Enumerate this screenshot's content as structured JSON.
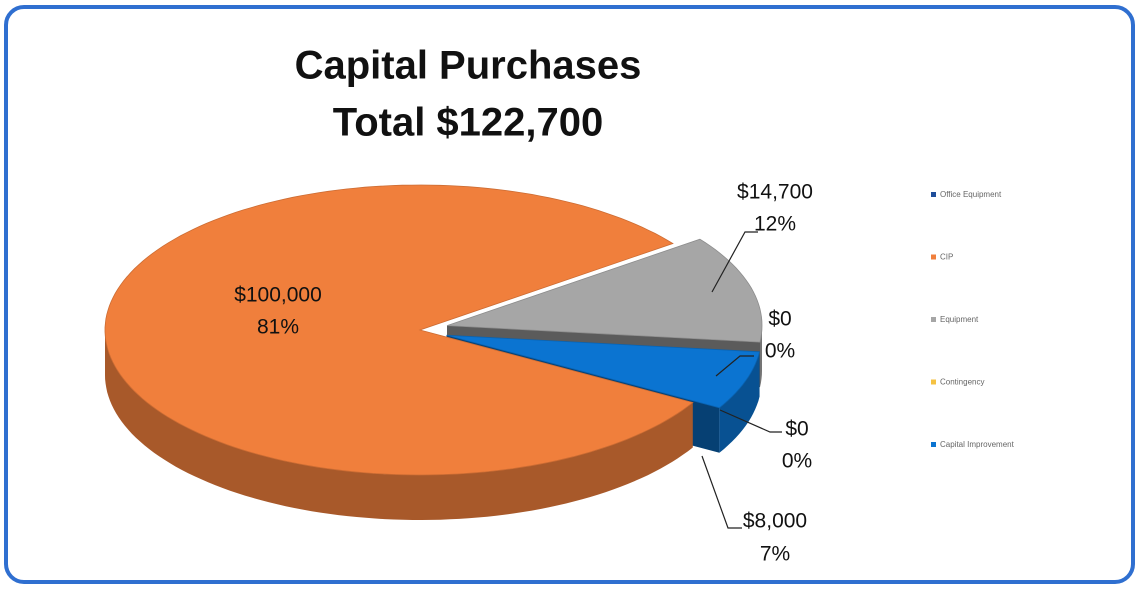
{
  "chart_data": {
    "type": "pie",
    "title": "Capital Purchases",
    "subtitle": "Total $122,700",
    "categories": [
      "Office Equipment",
      "CIP",
      "Equipment",
      "Contingency",
      "Capital Improvement"
    ],
    "values": [
      0,
      100000,
      14700,
      0,
      8000
    ],
    "value_labels": [
      "$0",
      "$100,000",
      "$14,700",
      "$0",
      "$8,000"
    ],
    "percent_labels": [
      "0%",
      "81%",
      "12%",
      "0%",
      "7%"
    ],
    "colors": [
      "#1f4e9a",
      "#f07f3c",
      "#a6a6a6",
      "#f5c242",
      "#0b74d1"
    ],
    "legend": "right"
  }
}
